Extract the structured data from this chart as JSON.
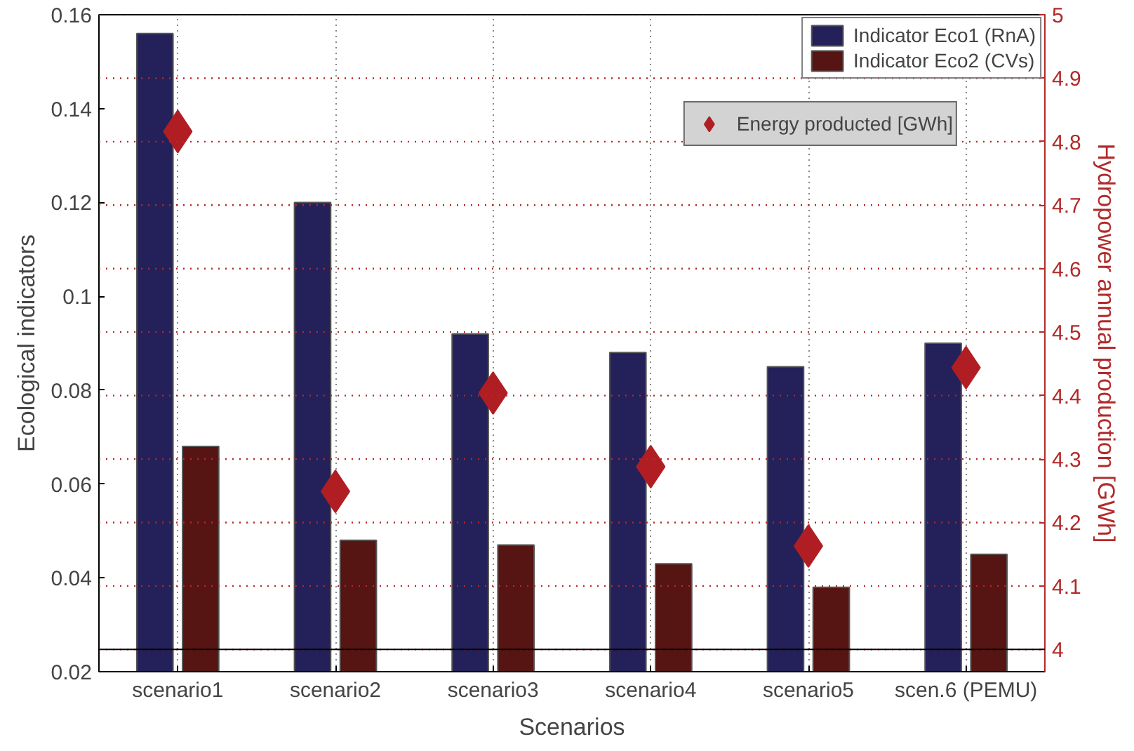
{
  "chart_data": {
    "type": "bar",
    "xlabel": "Scenarios",
    "ylabel": "Ecological indicators",
    "y2label": "Hydropower annual production [GWh]",
    "categories": [
      "scenario1",
      "scenario2",
      "scenario3",
      "scenario4",
      "scenario5",
      "scen.6 (PEMU)"
    ],
    "series": [
      {
        "name": "Indicator Eco1 (RnA)",
        "color": "#23205a",
        "values": [
          0.156,
          0.12,
          0.092,
          0.088,
          0.085,
          0.09
        ]
      },
      {
        "name": "Indicator Eco2 (CVs)",
        "color": "#561412",
        "values": [
          0.068,
          0.048,
          0.047,
          0.043,
          0.038,
          0.045
        ]
      },
      {
        "name": "Energy producted [GWh]",
        "type": "scatter",
        "axis": "y2",
        "marker": "diamond",
        "color": "#b01e23",
        "values": [
          4.816,
          4.249,
          4.404,
          4.288,
          4.163,
          4.444
        ]
      }
    ],
    "ylim": [
      0.02,
      0.16
    ],
    "yticks": [
      0.02,
      0.04,
      0.06,
      0.08,
      0.1,
      0.12,
      0.14,
      0.16
    ],
    "y2lim": [
      3.965,
      5
    ],
    "y2ticks": [
      4,
      4.1,
      4.2,
      4.3,
      4.4,
      4.5,
      4.6,
      4.7,
      4.8,
      4.9,
      5
    ],
    "ref_lines": [
      {
        "axis": "y2",
        "value": 4,
        "color": "#000000",
        "line_style": "solid"
      }
    ],
    "grid": true,
    "legend": "top right"
  }
}
